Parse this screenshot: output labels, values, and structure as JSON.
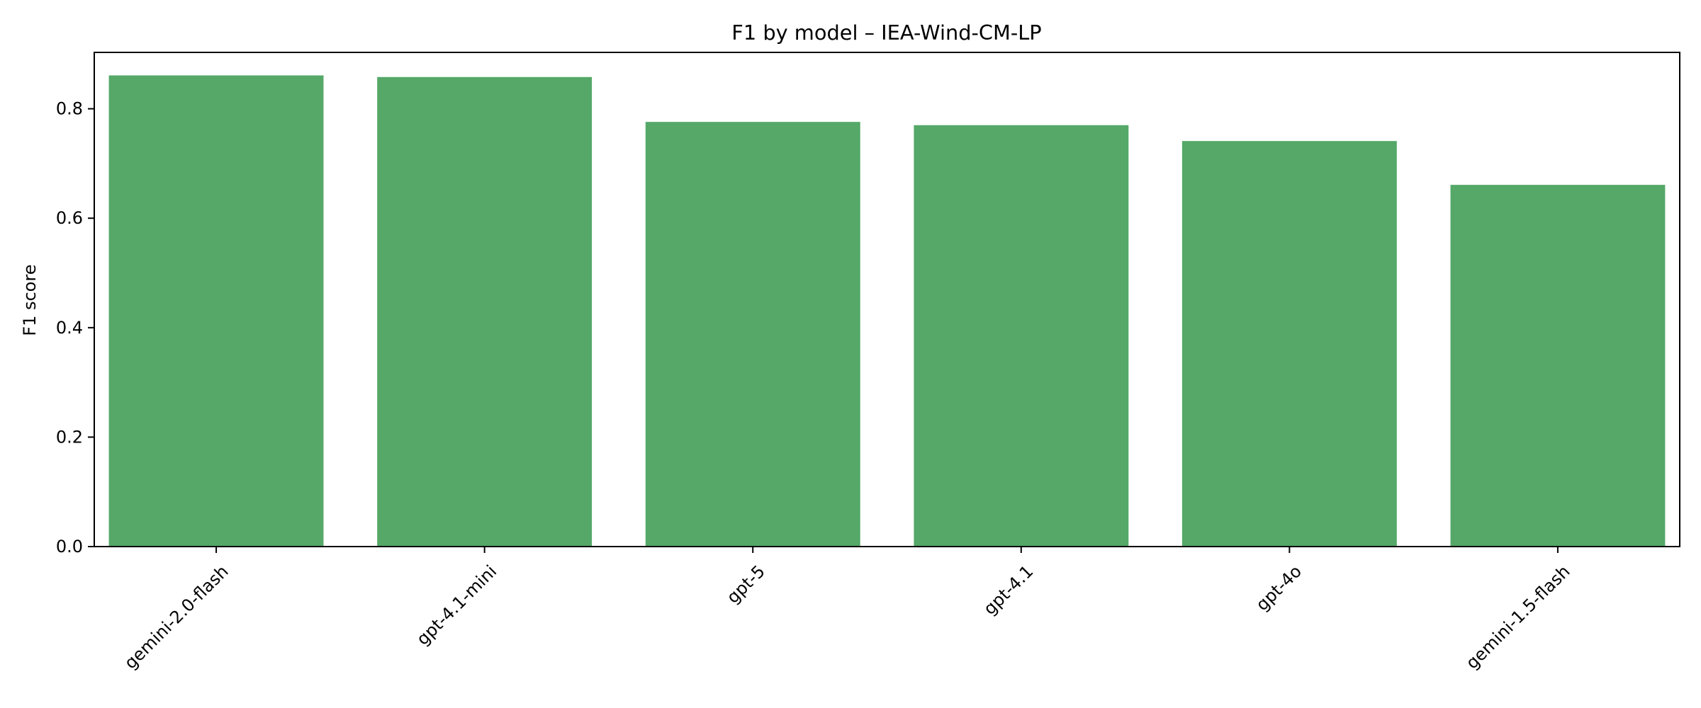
{
  "chart_data": {
    "type": "bar",
    "title": "F1 by model – IEA-Wind-CM-LP",
    "xlabel": "",
    "ylabel": "F1 score",
    "categories": [
      "gemini-2.0-flash",
      "gpt-4.1-mini",
      "gpt-5",
      "gpt-4.1",
      "gpt-4o",
      "gemini-1.5-flash"
    ],
    "values": [
      0.861,
      0.858,
      0.776,
      0.77,
      0.741,
      0.661
    ],
    "ylim": [
      0,
      0.903
    ],
    "yticks": [
      0.0,
      0.2,
      0.4,
      0.6,
      0.8
    ],
    "ytick_labels": [
      "0.0",
      "0.2",
      "0.4",
      "0.6",
      "0.8"
    ],
    "bar_color": "#55a868",
    "grid": false,
    "legend": "none"
  }
}
